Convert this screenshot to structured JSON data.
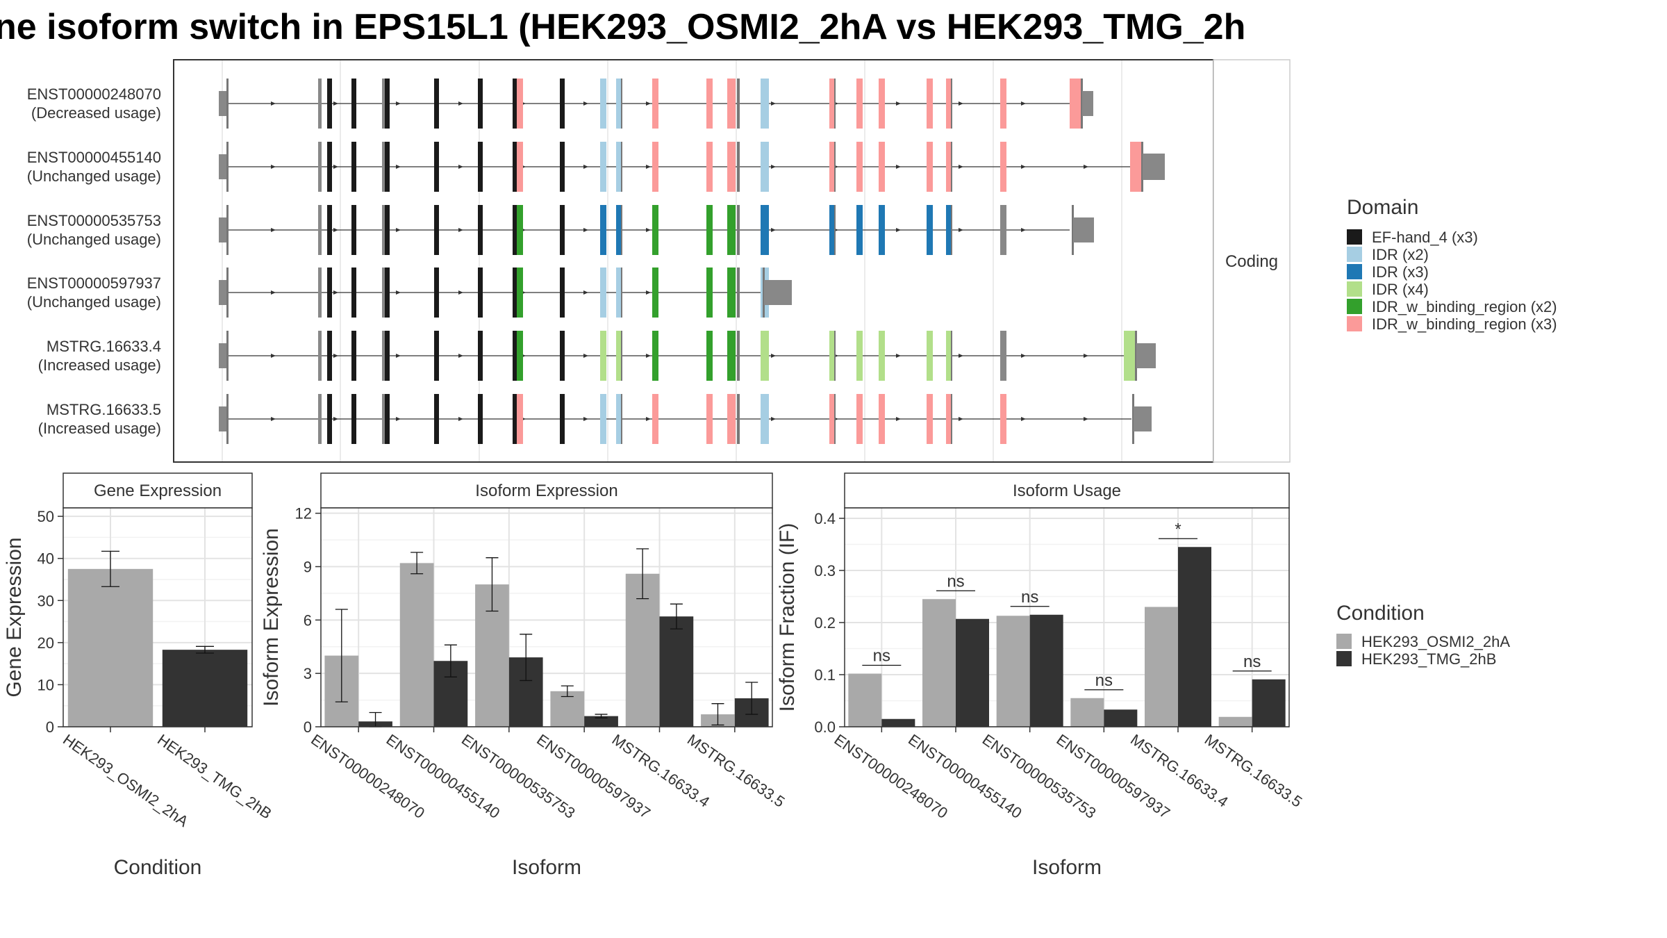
{
  "title": "ne isoform switch in EPS15L1 (HEK293_OSMI2_2hA vs HEK293_TMG_2h",
  "chart_data": [
    {
      "type": "other",
      "kind": "transcript-structure",
      "strip_label": "Coding",
      "isoforms": [
        {
          "id": "ENST00000248070",
          "usage": "(Decreased usage)"
        },
        {
          "id": "ENST00000455140",
          "usage": "(Unchanged usage)"
        },
        {
          "id": "ENST00000535753",
          "usage": "(Unchanged usage)"
        },
        {
          "id": "ENST00000597937",
          "usage": "(Unchanged usage)"
        },
        {
          "id": "MSTRG.16633.4",
          "usage": "(Increased usage)"
        },
        {
          "id": "MSTRG.16633.5",
          "usage": "(Increased usage)"
        }
      ],
      "legend_title": "Domain",
      "legend": [
        {
          "label": "EF-hand_4 (x3)",
          "color": "#1a1a1a"
        },
        {
          "label": "IDR (x2)",
          "color": "#a6cee3"
        },
        {
          "label": "IDR (x3)",
          "color": "#1f78b4"
        },
        {
          "label": "IDR (x4)",
          "color": "#b2df8a"
        },
        {
          "label": "IDR_w_binding_region (x2)",
          "color": "#33a02c"
        },
        {
          "label": "IDR_w_binding_region (x3)",
          "color": "#fb9a99"
        }
      ]
    },
    {
      "type": "bar",
      "title": "Gene Expression",
      "xlabel": "Condition",
      "ylabel": "Gene Expression",
      "ylim": [
        0,
        52
      ],
      "yticks": [
        0,
        10,
        20,
        30,
        40,
        50
      ],
      "categories": [
        "HEK293_OSMI2_2hA",
        "HEK293_TMG_2hB"
      ],
      "values": [
        37.5,
        18.3
      ],
      "errors": [
        4.2,
        0.8
      ],
      "colors": [
        "#a9a9a9",
        "#333333"
      ]
    },
    {
      "type": "bar",
      "title": "Isoform Expression",
      "xlabel": "Isoform",
      "ylabel": "Isoform Expression",
      "ylim": [
        0,
        12.3
      ],
      "yticks": [
        0,
        3,
        6,
        9,
        12
      ],
      "categories": [
        "ENST00000248070",
        "ENST00000455140",
        "ENST00000535753",
        "ENST00000597937",
        "MSTRG.16633.4",
        "MSTRG.16633.5"
      ],
      "series": [
        {
          "name": "HEK293_OSMI2_2hA",
          "color": "#a9a9a9",
          "values": [
            4.0,
            9.2,
            8.0,
            2.0,
            8.6,
            0.7
          ],
          "errors": [
            2.6,
            0.6,
            1.5,
            0.3,
            1.4,
            0.6
          ]
        },
        {
          "name": "HEK293_TMG_2hB",
          "color": "#333333",
          "values": [
            0.3,
            3.7,
            3.9,
            0.6,
            6.2,
            1.6
          ],
          "errors": [
            0.5,
            0.9,
            1.3,
            0.1,
            0.7,
            0.9
          ]
        }
      ]
    },
    {
      "type": "bar",
      "title": "Isoform Usage",
      "xlabel": "Isoform",
      "ylabel": "Isoform Fraction (IF)",
      "ylim": [
        0,
        0.42
      ],
      "yticks": [
        0.0,
        0.1,
        0.2,
        0.3,
        0.4
      ],
      "ytick_labels": [
        "0.0",
        "0.1",
        "0.2",
        "0.3",
        "0.4"
      ],
      "categories": [
        "ENST00000248070",
        "ENST00000455140",
        "ENST00000535753",
        "ENST00000597937",
        "MSTRG.16633.4",
        "MSTRG.16633.5"
      ],
      "series": [
        {
          "name": "HEK293_OSMI2_2hA",
          "color": "#a9a9a9",
          "values": [
            0.102,
            0.245,
            0.213,
            0.055,
            0.23,
            0.019
          ]
        },
        {
          "name": "HEK293_TMG_2hB",
          "color": "#333333",
          "values": [
            0.015,
            0.207,
            0.215,
            0.033,
            0.345,
            0.091
          ]
        }
      ],
      "annotations": [
        "ns",
        "ns",
        "ns",
        "ns",
        "*",
        "ns"
      ]
    }
  ],
  "condition_legend": {
    "title": "Condition",
    "items": [
      {
        "label": "HEK293_OSMI2_2hA",
        "color": "#a9a9a9"
      },
      {
        "label": "HEK293_TMG_2hB",
        "color": "#333333"
      }
    ]
  }
}
